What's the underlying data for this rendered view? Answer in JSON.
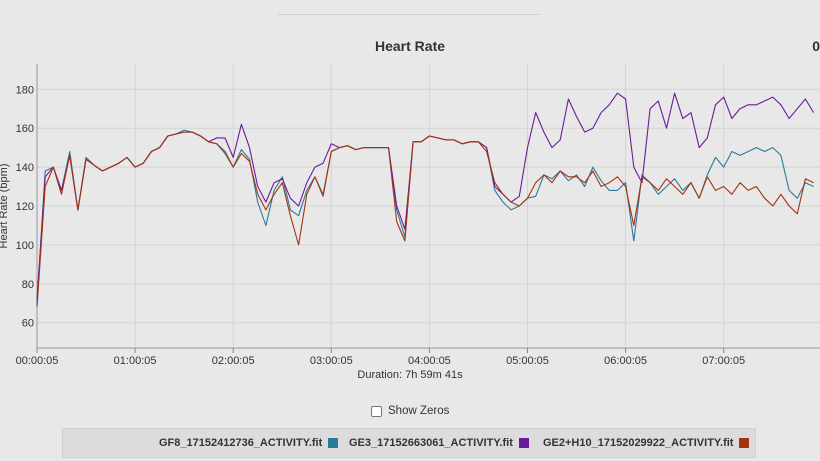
{
  "chart_data": {
    "type": "line",
    "title": "Heart Rate",
    "xlabel": "Duration: 7h 59m 41s",
    "ylabel": "Heart Rate (bpm)",
    "x_unit": "elapsed time",
    "x_ticks": [
      "00:00:05",
      "01:00:05",
      "02:00:05",
      "03:00:05",
      "04:00:05",
      "05:00:05",
      "06:00:05",
      "07:00:05"
    ],
    "y_ticks": [
      60,
      80,
      100,
      120,
      140,
      160,
      180
    ],
    "ylim": [
      47,
      193
    ],
    "grid": true,
    "legend_position": "bottom",
    "x_sample_times": [
      "00:00:05",
      "00:05:05",
      "00:10:05",
      "00:15:05",
      "00:20:05",
      "00:25:05",
      "00:30:05",
      "00:35:05",
      "00:40:05",
      "00:45:05",
      "00:50:05",
      "00:55:05",
      "01:00:05",
      "01:05:05",
      "01:10:05",
      "01:15:05",
      "01:20:05",
      "01:25:05",
      "01:30:05",
      "01:35:05",
      "01:40:05",
      "01:45:05",
      "01:50:05",
      "01:55:05",
      "02:00:05",
      "02:05:05",
      "02:10:05",
      "02:15:05",
      "02:20:05",
      "02:25:05",
      "02:30:05",
      "02:35:05",
      "02:40:05",
      "02:45:05",
      "02:50:05",
      "02:55:05",
      "03:00:05",
      "03:05:05",
      "03:10:05",
      "03:15:05",
      "03:20:05",
      "03:25:05",
      "03:30:05",
      "03:35:05",
      "03:40:05",
      "03:45:05",
      "03:50:05",
      "03:55:05",
      "04:00:05",
      "04:05:05",
      "04:10:05",
      "04:15:05",
      "04:20:05",
      "04:25:05",
      "04:30:05",
      "04:35:05",
      "04:40:05",
      "04:45:05",
      "04:50:05",
      "04:55:05",
      "05:00:05",
      "05:05:05",
      "05:10:05",
      "05:15:05",
      "05:20:05",
      "05:25:05",
      "05:30:05",
      "05:35:05",
      "05:40:05",
      "05:45:05",
      "05:50:05",
      "05:55:05",
      "06:00:05",
      "06:05:05",
      "06:10:05",
      "06:15:05",
      "06:20:05",
      "06:25:05",
      "06:30:05",
      "06:35:05",
      "06:40:05",
      "06:45:05",
      "06:50:05",
      "06:55:05",
      "07:00:05",
      "07:05:05",
      "07:10:05",
      "07:15:05",
      "07:20:05",
      "07:25:05",
      "07:30:05",
      "07:35:05",
      "07:40:05",
      "07:45:05",
      "07:50:05",
      "07:55:05"
    ],
    "series": [
      {
        "name": "GF8_17152412736_ACTIVITY.fit",
        "color": "#2b7a99",
        "values": [
          70,
          138,
          140,
          128,
          148,
          118,
          145,
          141,
          138,
          140,
          142,
          145,
          140,
          142,
          148,
          150,
          156,
          157,
          159,
          158,
          156,
          153,
          152,
          147,
          140,
          149,
          144,
          122,
          110,
          128,
          135,
          118,
          115,
          128,
          135,
          126,
          148,
          150,
          151,
          149,
          150,
          150,
          150,
          150,
          118,
          104,
          153,
          153,
          156,
          155,
          154,
          154,
          152,
          153,
          153,
          150,
          128,
          122,
          118,
          120,
          124,
          125,
          136,
          134,
          138,
          133,
          136,
          130,
          140,
          133,
          128,
          128,
          132,
          102,
          136,
          132,
          126,
          130,
          134,
          128,
          132,
          124,
          136,
          145,
          140,
          148,
          146,
          148,
          150,
          148,
          150,
          146,
          128,
          124,
          132,
          130
        ]
      },
      {
        "name": "GE3_17152663061_ACTIVITY.fit",
        "color": "#6a1b9a",
        "values": [
          72,
          135,
          140,
          128,
          146,
          118,
          144,
          141,
          138,
          140,
          142,
          145,
          140,
          142,
          148,
          150,
          156,
          157,
          158,
          158,
          156,
          153,
          155,
          155,
          145,
          162,
          150,
          130,
          122,
          132,
          134,
          124,
          120,
          132,
          140,
          142,
          152,
          150,
          151,
          149,
          150,
          150,
          150,
          150,
          120,
          108,
          153,
          153,
          156,
          155,
          154,
          154,
          152,
          153,
          153,
          150,
          130,
          126,
          122,
          125,
          150,
          168,
          158,
          150,
          154,
          175,
          166,
          158,
          160,
          168,
          172,
          178,
          175,
          140,
          132,
          170,
          174,
          160,
          178,
          165,
          168,
          150,
          155,
          172,
          176,
          165,
          170,
          172,
          172,
          174,
          176,
          172,
          165,
          170,
          175,
          168
        ]
      },
      {
        "name": "GE2+H10_17152029922_ACTIVITY.fit",
        "color": "#a5330f",
        "values": [
          68,
          130,
          140,
          126,
          146,
          118,
          144,
          141,
          138,
          140,
          142,
          145,
          140,
          142,
          148,
          150,
          156,
          157,
          158,
          158,
          156,
          153,
          152,
          148,
          140,
          147,
          143,
          126,
          118,
          126,
          132,
          115,
          100,
          126,
          135,
          125,
          148,
          150,
          151,
          149,
          150,
          150,
          150,
          150,
          112,
          102,
          153,
          153,
          156,
          155,
          154,
          154,
          152,
          153,
          153,
          148,
          132,
          126,
          122,
          120,
          124,
          132,
          136,
          132,
          138,
          135,
          135,
          132,
          138,
          130,
          132,
          135,
          130,
          110,
          135,
          132,
          128,
          134,
          130,
          126,
          132,
          124,
          135,
          128,
          130,
          126,
          132,
          128,
          130,
          124,
          120,
          126,
          120,
          116,
          134,
          132
        ]
      }
    ]
  },
  "show_zeros": {
    "label": "Show Zeros",
    "checked": false
  },
  "corner_text": "0"
}
